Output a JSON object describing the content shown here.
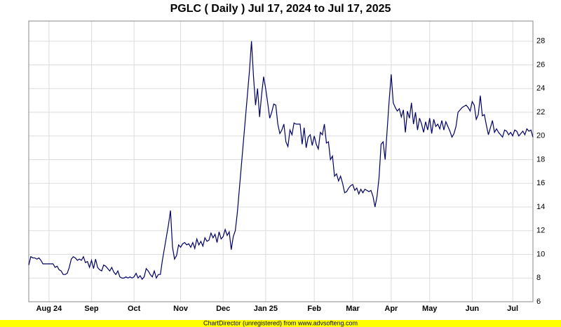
{
  "chart_data": {
    "type": "line",
    "title": "PGLC ( Daily ) Jul 17, 2024 to Jul 17, 2025",
    "footer": "ChartDirector (unregistered) from www.advsofteng.com",
    "color": "#000066",
    "grid": true,
    "y_axis_side": "right",
    "xlim": [
      0,
      249
    ],
    "ylim": [
      6,
      29.7
    ],
    "yticks": [
      6,
      8,
      10,
      12,
      14,
      16,
      18,
      20,
      22,
      24,
      26,
      28
    ],
    "xticks": [
      {
        "value": 10,
        "label": "Aug 24"
      },
      {
        "value": 31,
        "label": "Sep"
      },
      {
        "value": 52,
        "label": "Oct"
      },
      {
        "value": 75,
        "label": "Nov"
      },
      {
        "value": 96,
        "label": "Dec"
      },
      {
        "value": 117,
        "label": "Jan 25"
      },
      {
        "value": 141,
        "label": "Feb"
      },
      {
        "value": 160,
        "label": "Mar"
      },
      {
        "value": 179,
        "label": "Apr"
      },
      {
        "value": 198,
        "label": "May"
      },
      {
        "value": 219,
        "label": "Jun"
      },
      {
        "value": 239,
        "label": "Jul"
      }
    ],
    "values": [
      9.1,
      9.8,
      9.7,
      9.7,
      9.6,
      9.7,
      9.5,
      9.2,
      9.2,
      9.2,
      9.2,
      9.2,
      9.2,
      8.9,
      9.0,
      8.7,
      8.6,
      8.3,
      8.3,
      8.4,
      8.9,
      9.6,
      9.8,
      9.7,
      9.5,
      9.6,
      9.5,
      9.8,
      9.3,
      9.4,
      8.9,
      9.5,
      8.8,
      9.6,
      8.9,
      8.7,
      8.6,
      9.1,
      9.0,
      8.8,
      8.6,
      8.9,
      8.5,
      8.3,
      8.6,
      8.1,
      8.0,
      8.0,
      8.1,
      8.0,
      8.1,
      8.0,
      8.1,
      8.4,
      8.0,
      8.2,
      7.9,
      8.1,
      8.8,
      8.6,
      8.3,
      8.1,
      8.6,
      8.0,
      8.3,
      8.3,
      9.5,
      10.5,
      11.5,
      12.5,
      13.7,
      10.6,
      9.6,
      9.9,
      10.8,
      10.6,
      10.9,
      11.0,
      10.8,
      10.9,
      10.6,
      11.0,
      10.5,
      11.3,
      10.8,
      11.1,
      10.7,
      11.4,
      11.1,
      11.2,
      11.8,
      11.4,
      11.7,
      11.0,
      11.9,
      11.3,
      11.5,
      12.1,
      11.6,
      11.9,
      10.4,
      11.5,
      12.0,
      13.5,
      15.5,
      17.5,
      19.5,
      21.5,
      23.5,
      25.5,
      28.0,
      25.0,
      22.6,
      24.0,
      21.6,
      23.5,
      25.0,
      24.0,
      22.8,
      21.5,
      22.0,
      22.7,
      22.6,
      21.0,
      20.2,
      20.5,
      21.0,
      19.5,
      19.1,
      20.5,
      20.1,
      21.1,
      21.0,
      21.0,
      21.0,
      19.3,
      20.7,
      19.0,
      19.9,
      20.1,
      19.2,
      20.0,
      19.3,
      18.9,
      20.3,
      20.1,
      21.0,
      19.4,
      19.5,
      18.0,
      18.3,
      16.6,
      16.8,
      16.2,
      16.6,
      16.0,
      15.2,
      15.3,
      15.6,
      15.8,
      15.9,
      15.4,
      15.6,
      15.1,
      15.5,
      15.2,
      15.5,
      15.4,
      15.3,
      15.4,
      14.9,
      14.0,
      14.9,
      16.5,
      19.3,
      19.5,
      18.0,
      20.5,
      23.0,
      25.2,
      22.8,
      22.4,
      22.1,
      22.3,
      21.6,
      22.2,
      20.3,
      22.1,
      21.5,
      22.8,
      21.0,
      22.0,
      20.5,
      21.5,
      21.0,
      20.3,
      21.2,
      20.5,
      21.5,
      20.2,
      21.4,
      20.8,
      21.0,
      20.6,
      21.3,
      20.5,
      21.2,
      20.8,
      20.4,
      19.9,
      20.2,
      20.8,
      22.0,
      22.2,
      22.4,
      22.5,
      22.6,
      22.4,
      22.1,
      22.9,
      22.6,
      21.4,
      21.8,
      23.4,
      21.7,
      21.8,
      20.9,
      20.1,
      20.7,
      21.3,
      20.3,
      20.6,
      20.3,
      20.1,
      19.9,
      20.5,
      20.4,
      20.1,
      20.3,
      20.0,
      20.5,
      20.4,
      20.0,
      20.2,
      20.4,
      20.1,
      20.6,
      20.4,
      20.5,
      19.9
    ]
  }
}
